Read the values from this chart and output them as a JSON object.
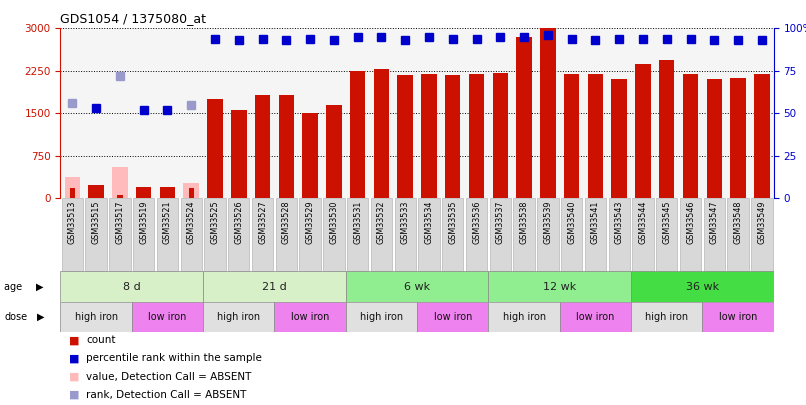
{
  "title": "GDS1054 / 1375080_at",
  "samples": [
    "GSM33513",
    "GSM33515",
    "GSM33517",
    "GSM33519",
    "GSM33521",
    "GSM33524",
    "GSM33525",
    "GSM33526",
    "GSM33527",
    "GSM33528",
    "GSM33529",
    "GSM33530",
    "GSM33531",
    "GSM33532",
    "GSM33533",
    "GSM33534",
    "GSM33535",
    "GSM33536",
    "GSM33537",
    "GSM33538",
    "GSM33539",
    "GSM33540",
    "GSM33541",
    "GSM33543",
    "GSM33544",
    "GSM33545",
    "GSM33546",
    "GSM33547",
    "GSM33548",
    "GSM33549"
  ],
  "count_values": [
    190,
    230,
    60,
    210,
    210,
    190,
    1750,
    1560,
    1820,
    1820,
    1510,
    1650,
    2250,
    2280,
    2180,
    2200,
    2180,
    2200,
    2220,
    2850,
    3000,
    2200,
    2200,
    2100,
    2380,
    2450,
    2200,
    2100,
    2120,
    2200
  ],
  "absent_count": [
    370,
    0,
    560,
    0,
    0,
    280,
    0,
    0,
    0,
    0,
    0,
    0,
    0,
    0,
    0,
    0,
    0,
    0,
    0,
    0,
    0,
    0,
    0,
    0,
    0,
    0,
    0,
    0,
    0,
    0
  ],
  "percentile_rank": [
    55,
    53,
    70,
    52,
    52,
    54,
    94,
    93,
    94,
    93,
    94,
    93,
    95,
    95,
    93,
    95,
    94,
    94,
    95,
    95,
    96,
    94,
    93,
    94,
    94,
    94,
    94,
    93,
    93,
    93
  ],
  "absent_rank_val": [
    56,
    0,
    72,
    0,
    0,
    55,
    0,
    0,
    0,
    0,
    0,
    0,
    0,
    0,
    0,
    0,
    0,
    0,
    0,
    0,
    0,
    0,
    0,
    0,
    0,
    0,
    0,
    0,
    0,
    0
  ],
  "absent_flags": [
    true,
    false,
    true,
    false,
    false,
    true,
    false,
    false,
    false,
    false,
    false,
    false,
    false,
    false,
    false,
    false,
    false,
    false,
    false,
    false,
    false,
    false,
    false,
    false,
    false,
    false,
    false,
    false,
    false,
    false
  ],
  "age_groups": [
    {
      "label": "8 d",
      "start": 0,
      "end": 6,
      "color": "#d8f0c8"
    },
    {
      "label": "21 d",
      "start": 6,
      "end": 12,
      "color": "#d8f0c8"
    },
    {
      "label": "6 wk",
      "start": 12,
      "end": 18,
      "color": "#90ee90"
    },
    {
      "label": "12 wk",
      "start": 18,
      "end": 24,
      "color": "#90ee90"
    },
    {
      "label": "36 wk",
      "start": 24,
      "end": 30,
      "color": "#44dd44"
    }
  ],
  "dose_groups": [
    {
      "label": "high iron",
      "start": 0,
      "end": 3,
      "color": "#e0e0e0"
    },
    {
      "label": "low iron",
      "start": 3,
      "end": 6,
      "color": "#ee82ee"
    },
    {
      "label": "high iron",
      "start": 6,
      "end": 9,
      "color": "#e0e0e0"
    },
    {
      "label": "low iron",
      "start": 9,
      "end": 12,
      "color": "#ee82ee"
    },
    {
      "label": "high iron",
      "start": 12,
      "end": 15,
      "color": "#e0e0e0"
    },
    {
      "label": "low iron",
      "start": 15,
      "end": 18,
      "color": "#ee82ee"
    },
    {
      "label": "high iron",
      "start": 18,
      "end": 21,
      "color": "#e0e0e0"
    },
    {
      "label": "low iron",
      "start": 21,
      "end": 24,
      "color": "#ee82ee"
    },
    {
      "label": "high iron",
      "start": 24,
      "end": 27,
      "color": "#e0e0e0"
    },
    {
      "label": "low iron",
      "start": 27,
      "end": 30,
      "color": "#ee82ee"
    }
  ],
  "ylim_left": [
    0,
    3000
  ],
  "ylim_right": [
    0,
    100
  ],
  "yticks_left": [
    0,
    750,
    1500,
    2250,
    3000
  ],
  "yticks_right": [
    0,
    25,
    50,
    75,
    100
  ],
  "bar_color": "#cc1100",
  "absent_bar_color": "#ffbbbb",
  "rank_dot_color": "#0000cc",
  "absent_rank_color": "#9999cc",
  "bg_color": "#ffffff",
  "xticklabel_bg": "#d8d8d8"
}
